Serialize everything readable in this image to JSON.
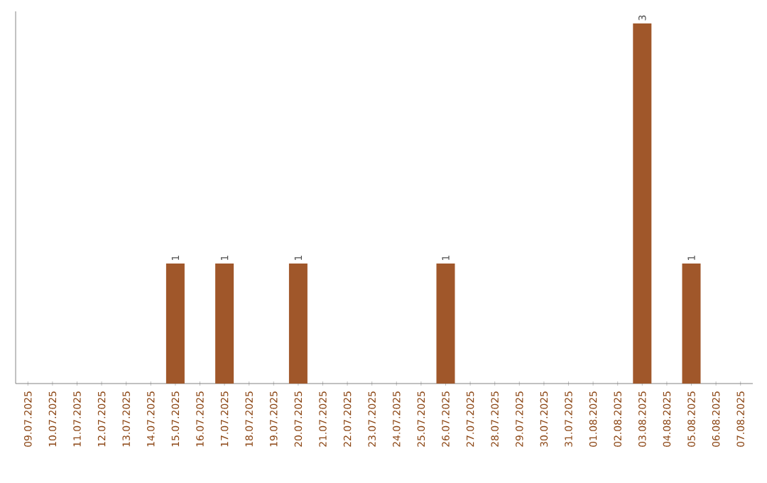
{
  "chart_data": {
    "type": "bar",
    "categories": [
      "09.07.2025",
      "10.07.2025",
      "11.07.2025",
      "12.07.2025",
      "13.07.2025",
      "14.07.2025",
      "15.07.2025",
      "16.07.2025",
      "17.07.2025",
      "18.07.2025",
      "19.07.2025",
      "20.07.2025",
      "21.07.2025",
      "22.07.2025",
      "23.07.2025",
      "24.07.2025",
      "25.07.2025",
      "26.07.2025",
      "27.07.2025",
      "28.07.2025",
      "29.07.2025",
      "30.07.2025",
      "31.07.2025",
      "01.08.2025",
      "02.08.2025",
      "03.08.2025",
      "04.08.2025",
      "05.08.2025",
      "06.08.2025",
      "07.08.2025"
    ],
    "values": [
      0,
      0,
      0,
      0,
      0,
      0,
      1,
      0,
      1,
      0,
      0,
      1,
      0,
      0,
      0,
      0,
      0,
      1,
      0,
      0,
      0,
      0,
      0,
      0,
      0,
      3,
      0,
      1,
      0,
      0
    ],
    "value_labels": [
      null,
      null,
      null,
      null,
      null,
      null,
      "1",
      null,
      "1",
      null,
      null,
      "1",
      null,
      null,
      null,
      null,
      null,
      "1",
      null,
      null,
      null,
      null,
      null,
      null,
      null,
      "3",
      null,
      "1",
      null,
      null
    ],
    "color": "#a0572a",
    "ylim": [
      0,
      3.1
    ],
    "tick_labels": "x"
  }
}
